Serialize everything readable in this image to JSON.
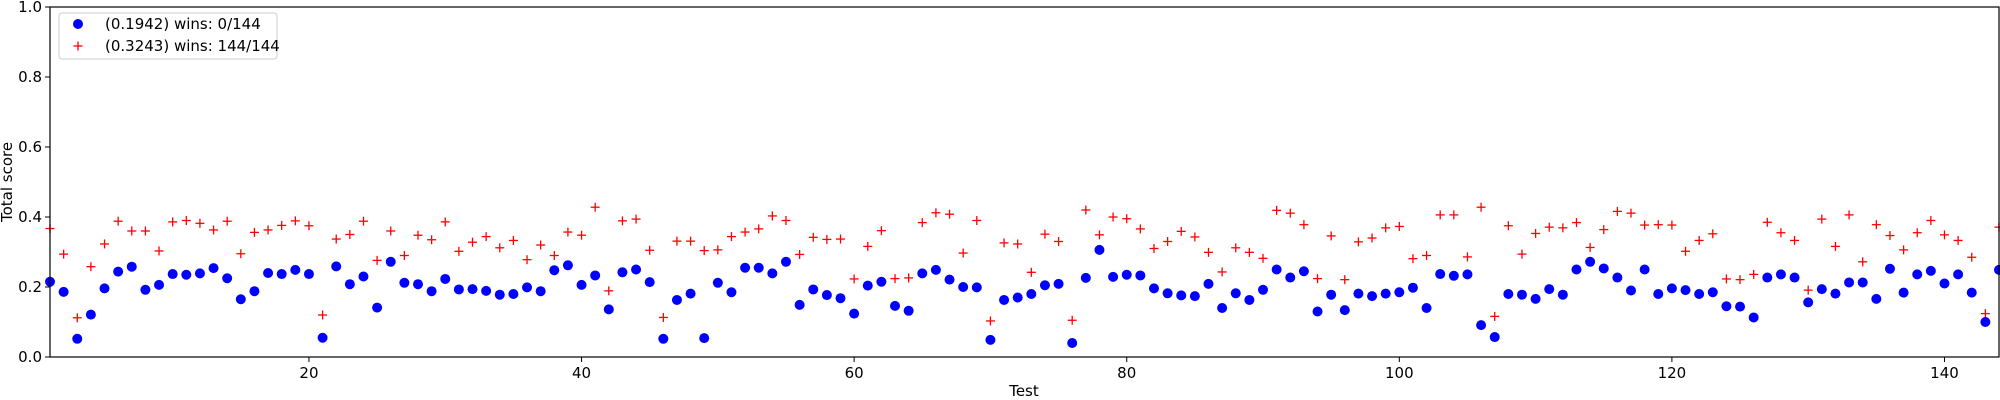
{
  "chart_data": {
    "type": "scatter",
    "xlabel": "Test",
    "ylabel": "Total score",
    "xlim": [
      1,
      144
    ],
    "ylim": [
      0,
      1.0
    ],
    "x_ticks": [
      20,
      40,
      60,
      80,
      100,
      120,
      140
    ],
    "y_ticks": [
      0.0,
      0.2,
      0.4,
      0.6,
      0.8,
      1.0
    ],
    "x_tick_labels": [
      "20",
      "40",
      "60",
      "80",
      "100",
      "120",
      "140"
    ],
    "y_tick_labels": [
      "0.0",
      "0.2",
      "0.4",
      "0.6",
      "0.8",
      "1.0"
    ],
    "grid": false,
    "legend_position": "upper-left",
    "series": [
      {
        "name": "(0.1942) wins: 0/144",
        "marker": "circle",
        "color": "#0000ff",
        "values": [
          0.215,
          0.186,
          0.052,
          0.121,
          0.196,
          0.244,
          0.258,
          0.192,
          0.206,
          0.237,
          0.235,
          0.239,
          0.254,
          0.225,
          0.165,
          0.188,
          0.24,
          0.237,
          0.249,
          0.237,
          0.055,
          0.259,
          0.208,
          0.23,
          0.141,
          0.272,
          0.212,
          0.208,
          0.188,
          0.223,
          0.193,
          0.194,
          0.189,
          0.178,
          0.18,
          0.199,
          0.188,
          0.248,
          0.262,
          0.206,
          0.233,
          0.136,
          0.242,
          0.25,
          0.214,
          0.052,
          0.163,
          0.181,
          0.054,
          0.212,
          0.185,
          0.255,
          0.255,
          0.239,
          0.272,
          0.149,
          0.193,
          0.177,
          0.168,
          0.124,
          0.204,
          0.215,
          0.146,
          0.132,
          0.239,
          0.249,
          0.221,
          0.2,
          0.199,
          0.049,
          0.163,
          0.17,
          0.18,
          0.205,
          0.209,
          0.04,
          0.226,
          0.306,
          0.229,
          0.235,
          0.233,
          0.196,
          0.182,
          0.176,
          0.174,
          0.209,
          0.14,
          0.182,
          0.163,
          0.192,
          0.25,
          0.227,
          0.245,
          0.13,
          0.178,
          0.134,
          0.181,
          0.174,
          0.181,
          0.185,
          0.198,
          0.14,
          0.237,
          0.232,
          0.236,
          0.091,
          0.057,
          0.18,
          0.178,
          0.166,
          0.194,
          0.178,
          0.25,
          0.272,
          0.253,
          0.227,
          0.19,
          0.25,
          0.18,
          0.196,
          0.191,
          0.18,
          0.185,
          0.145,
          0.144,
          0.113,
          0.227,
          0.236,
          0.227,
          0.156,
          0.194,
          0.181,
          0.213,
          0.213,
          0.166,
          0.252,
          0.184,
          0.236,
          0.246,
          0.21,
          0.236,
          0.184,
          0.1,
          0.249
        ]
      },
      {
        "name": "(0.3243) wins: 144/144",
        "marker": "plus",
        "color": "#ff0000",
        "values": [
          0.367,
          0.294,
          0.112,
          0.258,
          0.323,
          0.388,
          0.36,
          0.36,
          0.303,
          0.386,
          0.39,
          0.382,
          0.363,
          0.388,
          0.295,
          0.356,
          0.363,
          0.376,
          0.389,
          0.375,
          0.12,
          0.337,
          0.35,
          0.388,
          0.276,
          0.36,
          0.29,
          0.348,
          0.335,
          0.386,
          0.302,
          0.328,
          0.344,
          0.312,
          0.333,
          0.278,
          0.32,
          0.29,
          0.357,
          0.348,
          0.428,
          0.189,
          0.389,
          0.394,
          0.305,
          0.113,
          0.331,
          0.331,
          0.304,
          0.306,
          0.344,
          0.357,
          0.366,
          0.403,
          0.39,
          0.293,
          0.342,
          0.336,
          0.337,
          0.223,
          0.316,
          0.361,
          0.224,
          0.226,
          0.384,
          0.412,
          0.408,
          0.297,
          0.39,
          0.103,
          0.326,
          0.323,
          0.242,
          0.351,
          0.33,
          0.105,
          0.42,
          0.349,
          0.4,
          0.395,
          0.366,
          0.31,
          0.33,
          0.359,
          0.343,
          0.299,
          0.243,
          0.312,
          0.299,
          0.282,
          0.419,
          0.411,
          0.378,
          0.224,
          0.346,
          0.221,
          0.329,
          0.34,
          0.369,
          0.373,
          0.281,
          0.29,
          0.406,
          0.406,
          0.286,
          0.428,
          0.116,
          0.375,
          0.294,
          0.353,
          0.371,
          0.369,
          0.384,
          0.313,
          0.364,
          0.416,
          0.411,
          0.377,
          0.378,
          0.377,
          0.302,
          0.333,
          0.352,
          0.223,
          0.221,
          0.236,
          0.385,
          0.355,
          0.333,
          0.191,
          0.394,
          0.316,
          0.406,
          0.272,
          0.378,
          0.347,
          0.306,
          0.355,
          0.39,
          0.349,
          0.333,
          0.285,
          0.124,
          0.371
        ]
      }
    ]
  }
}
